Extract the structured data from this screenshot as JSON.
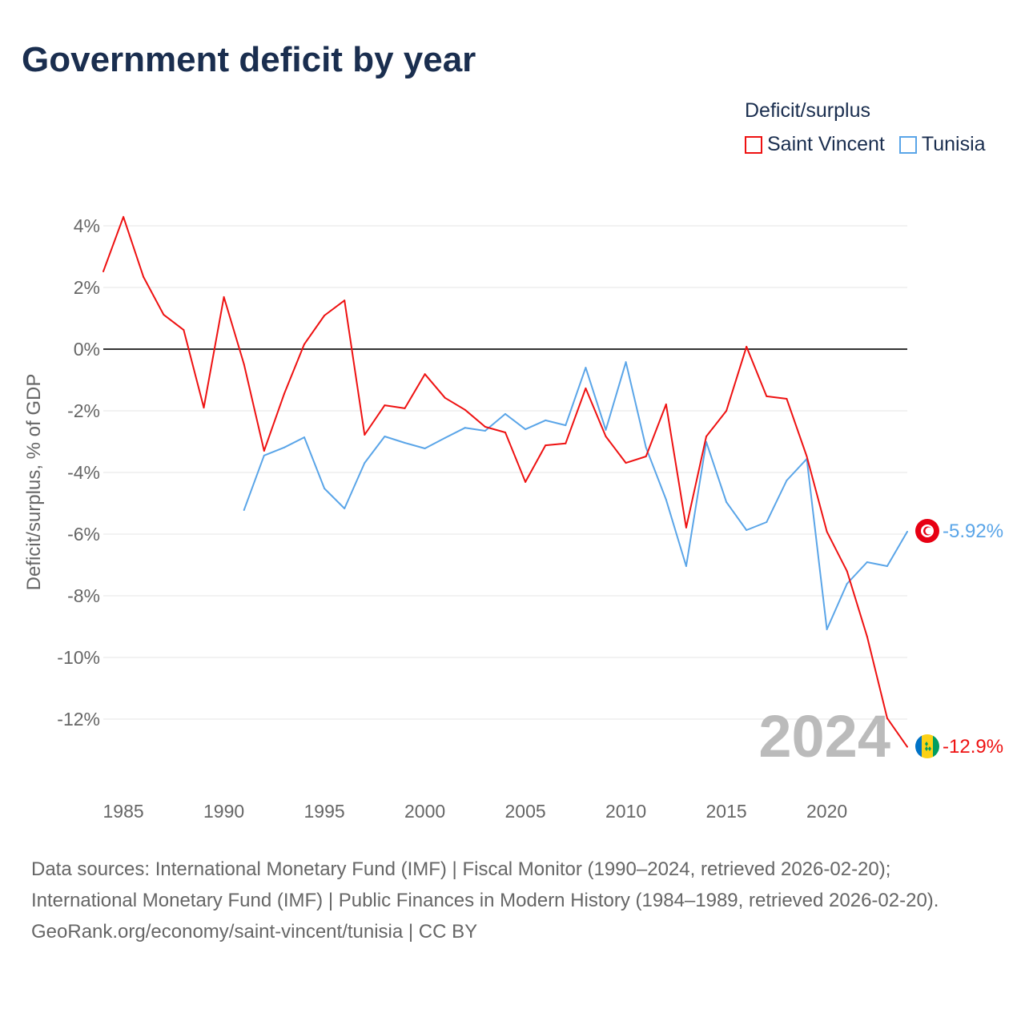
{
  "title": "Government deficit by year",
  "legend": {
    "title": "Deficit/surplus",
    "items": [
      {
        "label": "Saint Vincent",
        "color": "#ee1111"
      },
      {
        "label": "Tunisia",
        "color": "#5aa5e8"
      }
    ]
  },
  "chart_data": {
    "type": "line",
    "title": "Government deficit by year",
    "xlabel": "",
    "ylabel": "Deficit/surplus, % of GDP",
    "xlim": [
      1984,
      2024
    ],
    "ylim": [
      -13.5,
      4.5
    ],
    "x_ticks": [
      1985,
      1990,
      1995,
      2000,
      2005,
      2010,
      2015,
      2020
    ],
    "y_ticks": [
      4,
      2,
      0,
      -2,
      -4,
      -6,
      -8,
      -10,
      -12
    ],
    "y_tick_labels": [
      "4%",
      "2%",
      "0%",
      "-2%",
      "-4%",
      "-6%",
      "-8%",
      "-10%",
      "-12%"
    ],
    "grid": true,
    "legend_position": "top-right",
    "year_watermark": "2024",
    "series": [
      {
        "name": "Saint Vincent",
        "color": "#ee1111",
        "end_label": "-12.9%",
        "x": [
          1984,
          1985,
          1986,
          1987,
          1988,
          1989,
          1990,
          1991,
          1992,
          1993,
          1994,
          1995,
          1996,
          1997,
          1998,
          1999,
          2000,
          2001,
          2002,
          2003,
          2004,
          2005,
          2006,
          2007,
          2008,
          2009,
          2010,
          2011,
          2012,
          2013,
          2014,
          2015,
          2016,
          2017,
          2018,
          2019,
          2020,
          2021,
          2022,
          2023,
          2024
        ],
        "values": [
          2.52,
          4.29,
          2.34,
          1.12,
          0.62,
          -1.9,
          1.69,
          -0.49,
          -3.3,
          -1.45,
          0.16,
          1.09,
          1.58,
          -2.78,
          -1.82,
          -1.92,
          -0.81,
          -1.58,
          -1.97,
          -2.52,
          -2.7,
          -4.31,
          -3.12,
          -3.06,
          -1.27,
          -2.83,
          -3.69,
          -3.48,
          -1.79,
          -5.79,
          -2.83,
          -2.0,
          0.08,
          -1.53,
          -1.61,
          -3.48,
          -5.92,
          -7.2,
          -9.32,
          -11.97,
          -12.9
        ]
      },
      {
        "name": "Tunisia",
        "color": "#5aa5e8",
        "end_label": "-5.92%",
        "x": [
          1991,
          1992,
          1993,
          1994,
          1995,
          1996,
          1997,
          1998,
          1999,
          2000,
          2001,
          2002,
          2003,
          2004,
          2005,
          2006,
          2007,
          2008,
          2009,
          2010,
          2011,
          2012,
          2013,
          2014,
          2015,
          2016,
          2017,
          2018,
          2019,
          2020,
          2021,
          2022,
          2023,
          2024
        ],
        "values": [
          -5.22,
          -3.45,
          -3.19,
          -2.86,
          -4.52,
          -5.17,
          -3.69,
          -2.83,
          -3.04,
          -3.22,
          -2.88,
          -2.55,
          -2.65,
          -2.1,
          -2.6,
          -2.31,
          -2.47,
          -0.6,
          -2.62,
          -0.42,
          -3.19,
          -4.88,
          -7.04,
          -3.01,
          -4.96,
          -5.87,
          -5.61,
          -4.26,
          -3.56,
          -9.09,
          -7.61,
          -6.91,
          -7.04,
          -5.92
        ]
      }
    ]
  },
  "footer": {
    "sources": "Data sources: International Monetary Fund (IMF) | Fiscal Monitor (1990–2024, retrieved 2026-02-20); International Monetary Fund (IMF) | Public Finances in Modern History (1984–1989, retrieved 2026-02-20).",
    "credit": "GeoRank.org/economy/saint-vincent/tunisia | CC BY"
  }
}
